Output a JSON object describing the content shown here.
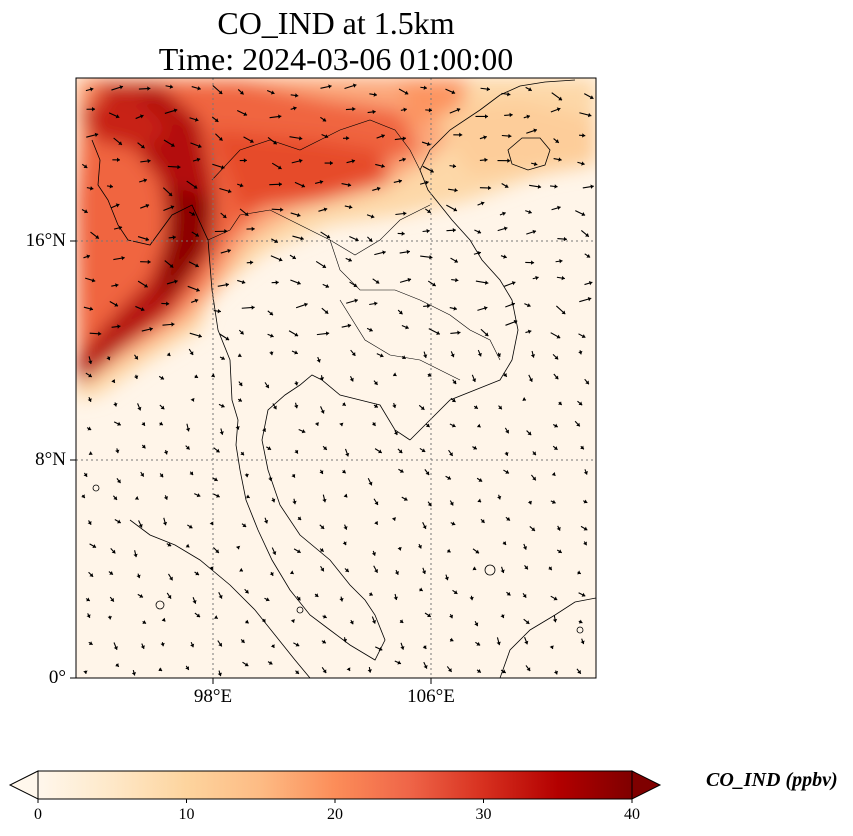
{
  "figure": {
    "title_line1": "CO_IND at 1.5km",
    "title_line2": "Time: 2024-03-06 01:00:00"
  },
  "map": {
    "extent": {
      "lon": [
        93,
        112
      ],
      "lat": [
        0,
        22
      ]
    },
    "lat_ticks": [
      {
        "value": 16,
        "label": "16°N"
      },
      {
        "value": 8,
        "label": "8°N"
      },
      {
        "value": 0,
        "label": "0°"
      }
    ],
    "lon_ticks": [
      {
        "value": 98,
        "label": "98°E"
      },
      {
        "value": 106,
        "label": "106°E"
      }
    ],
    "gridlines": true,
    "field": "CO_IND",
    "overlay": "wind vectors (quiver)",
    "coastlines": true
  },
  "colorbar": {
    "label": "CO_IND (ppbv)",
    "min": 0,
    "max": 40,
    "ticks": [
      "0",
      "10",
      "20",
      "30",
      "40"
    ],
    "colormap": "OrRd",
    "extend": "both",
    "colors": [
      "#fff7ec",
      "#fee8c8",
      "#fdd49e",
      "#fdbb84",
      "#fc8d59",
      "#ef6548",
      "#d7301f",
      "#b30000",
      "#7f0000"
    ]
  }
}
